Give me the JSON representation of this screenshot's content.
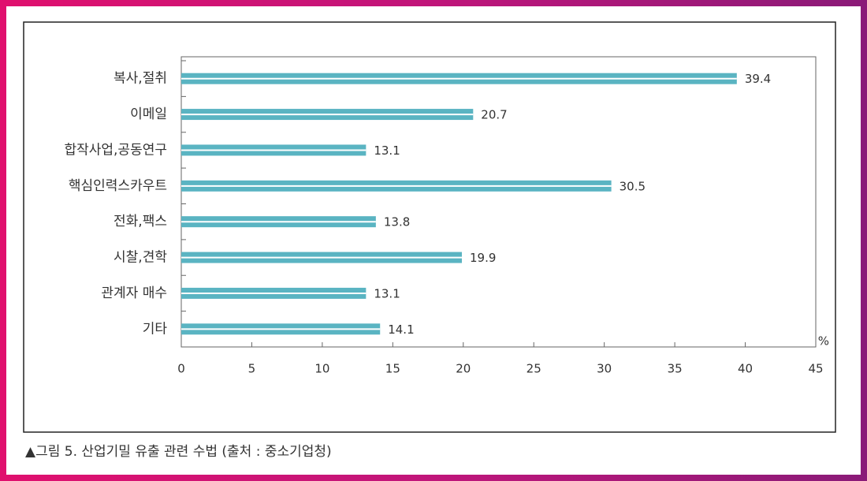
{
  "chart_data": {
    "type": "bar",
    "orientation": "horizontal",
    "categories": [
      "복사,절취",
      "이메일",
      "합작사업,공동연구",
      "핵심인력스카우트",
      "전화,팩스",
      "시찰,견학",
      "관계자 매수",
      "기타"
    ],
    "values": [
      39.4,
      20.7,
      13.1,
      30.5,
      13.8,
      19.9,
      13.1,
      14.1
    ],
    "color": "#5ab4c2",
    "xlim": [
      0,
      45
    ],
    "xticks": [
      0,
      5,
      10,
      15,
      20,
      25,
      30,
      35,
      40,
      45
    ],
    "x_unit": "%",
    "caption": "▲그림 5. 산업기밀 유출 관련 수법 (출처 : 중소기업청)"
  }
}
